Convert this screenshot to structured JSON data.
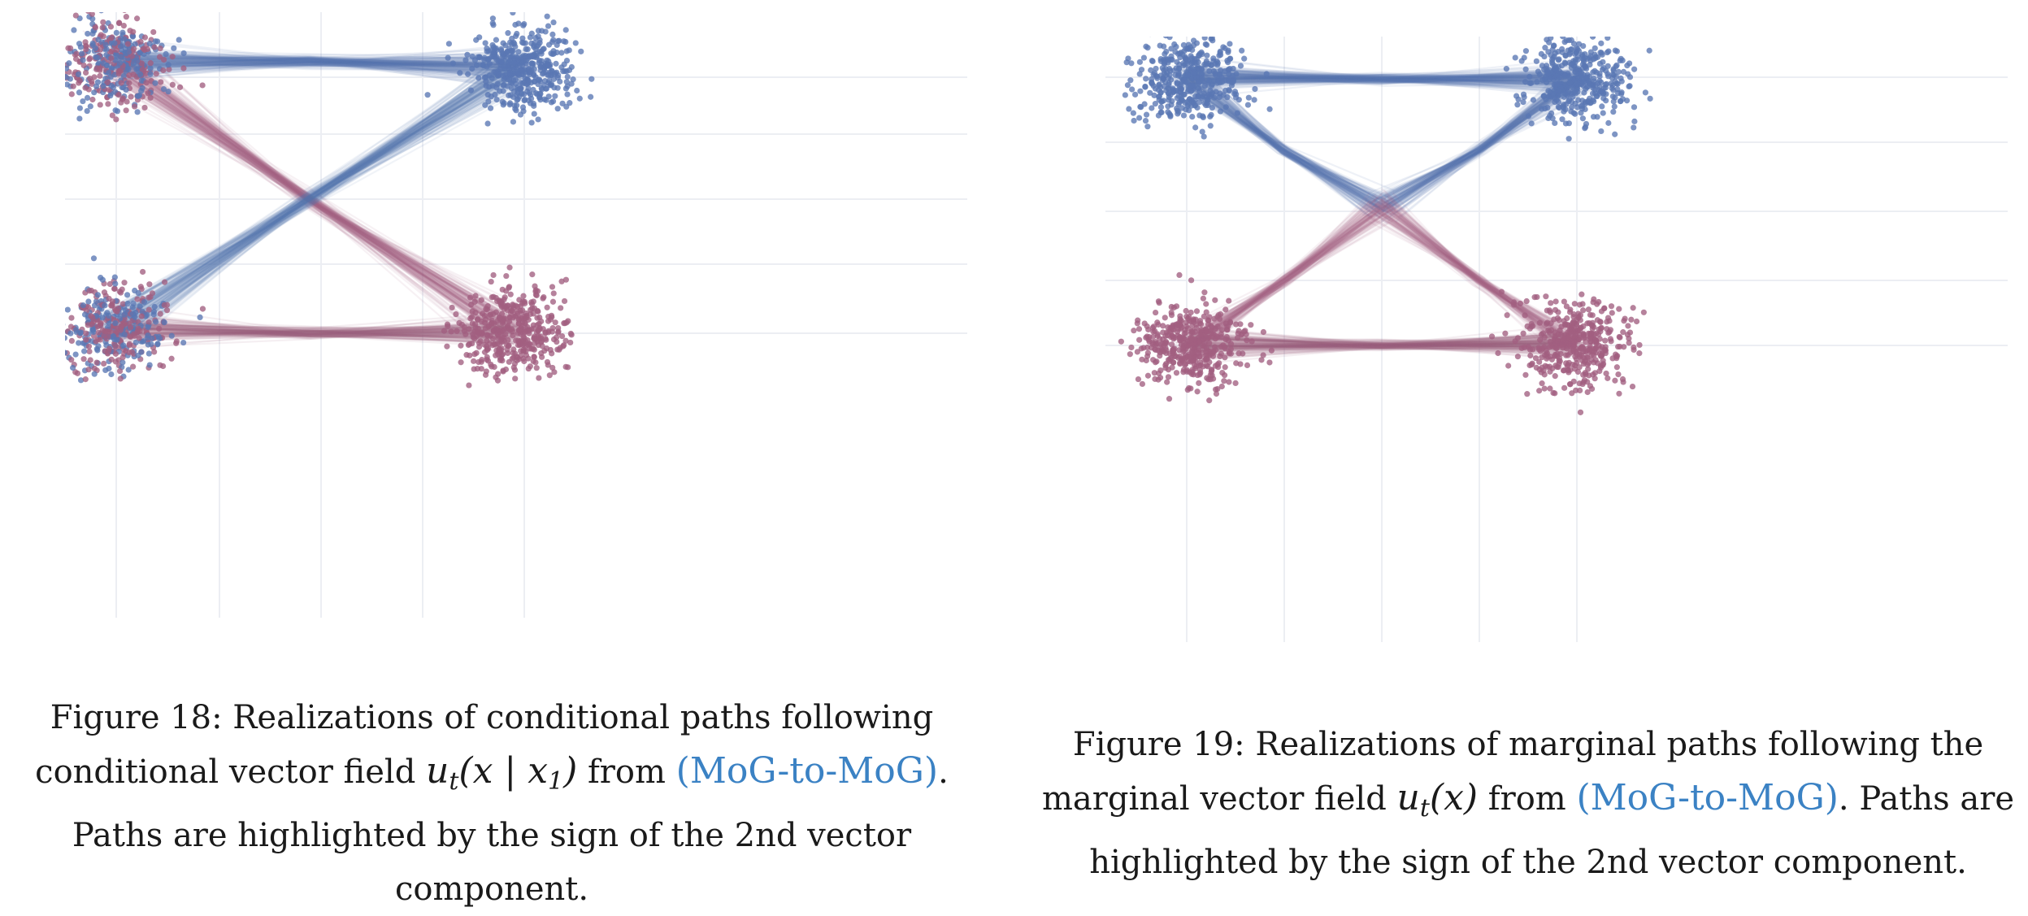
{
  "figure18": {
    "caption_prefix": "Figure 18: Realizations of conditional paths following conditional vector field ",
    "math": "u",
    "math_sub": "t",
    "math_args": "(x | x",
    "math_args_sub": "1",
    "math_close": ")",
    "from_text": " from ",
    "ref": "(MoG-to-MoG)",
    "caption_suffix": ". Paths are highlighted by the sign of the 2nd vector component."
  },
  "figure19": {
    "caption_prefix": "Figure 19: Realizations of marginal paths following the marginal vector field ",
    "math": "u",
    "math_sub": "t",
    "math_args": "(x)",
    "from_text": " from ",
    "ref": "(MoG-to-MoG)",
    "caption_suffix": ". Paths are highlighted by the sign of the 2nd vector component."
  },
  "colors": {
    "positive_path": "#5a77b3",
    "negative_path": "#a15f80",
    "grid": "#eceef3",
    "ref_link": "#3b82c4"
  }
}
